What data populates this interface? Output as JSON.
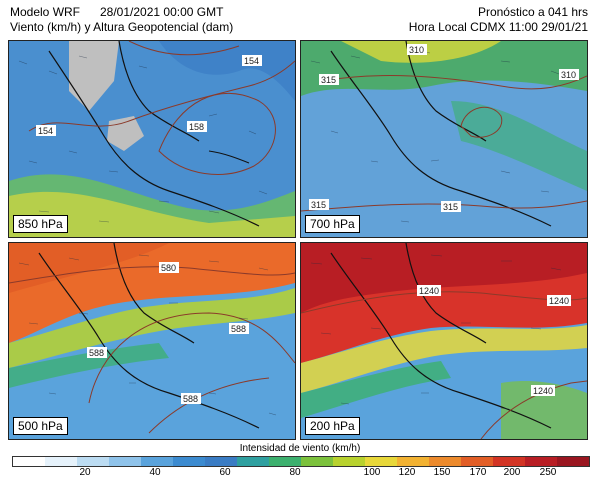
{
  "header": {
    "model": "Modelo WRF",
    "init_time": "28/01/2021 00:00 GMT",
    "description": "Viento (km/h) y Altura Geopotencial (dam)",
    "forecast": "Pronóstico a 041 hrs",
    "local_time": "Hora Local CDMX 11:00 29/01/21"
  },
  "panels": [
    {
      "level": "850 hPa",
      "base": "#4a8fcf",
      "contours": [
        "154",
        "154",
        "158"
      ]
    },
    {
      "level": "700 hPa",
      "base": "#62a2d8",
      "contours": [
        "310",
        "315",
        "315",
        "315",
        "310"
      ]
    },
    {
      "level": "500 hPa",
      "base": "#ea6a2a",
      "contours": [
        "580",
        "588",
        "588",
        "588"
      ]
    },
    {
      "level": "200 hPa",
      "base": "#d8332a",
      "contours": [
        "1240",
        "1240",
        "1240"
      ]
    }
  ],
  "colorbar": {
    "title": "Intensidad de viento (km/h)",
    "colors": [
      "#ffffff",
      "#e6f2fb",
      "#bcdcf2",
      "#8fc3ea",
      "#5aa3dc",
      "#3c8bd0",
      "#3a7cc4",
      "#2fa0a0",
      "#3cb06e",
      "#7cc23c",
      "#b8d22e",
      "#e8d83a",
      "#f2b232",
      "#ec8a2c",
      "#e25e26",
      "#d23424",
      "#b81e24",
      "#9a1620"
    ],
    "ticks": [
      "20",
      "40",
      "60",
      "80",
      "100",
      "120",
      "150",
      "170",
      "200",
      "250"
    ]
  }
}
